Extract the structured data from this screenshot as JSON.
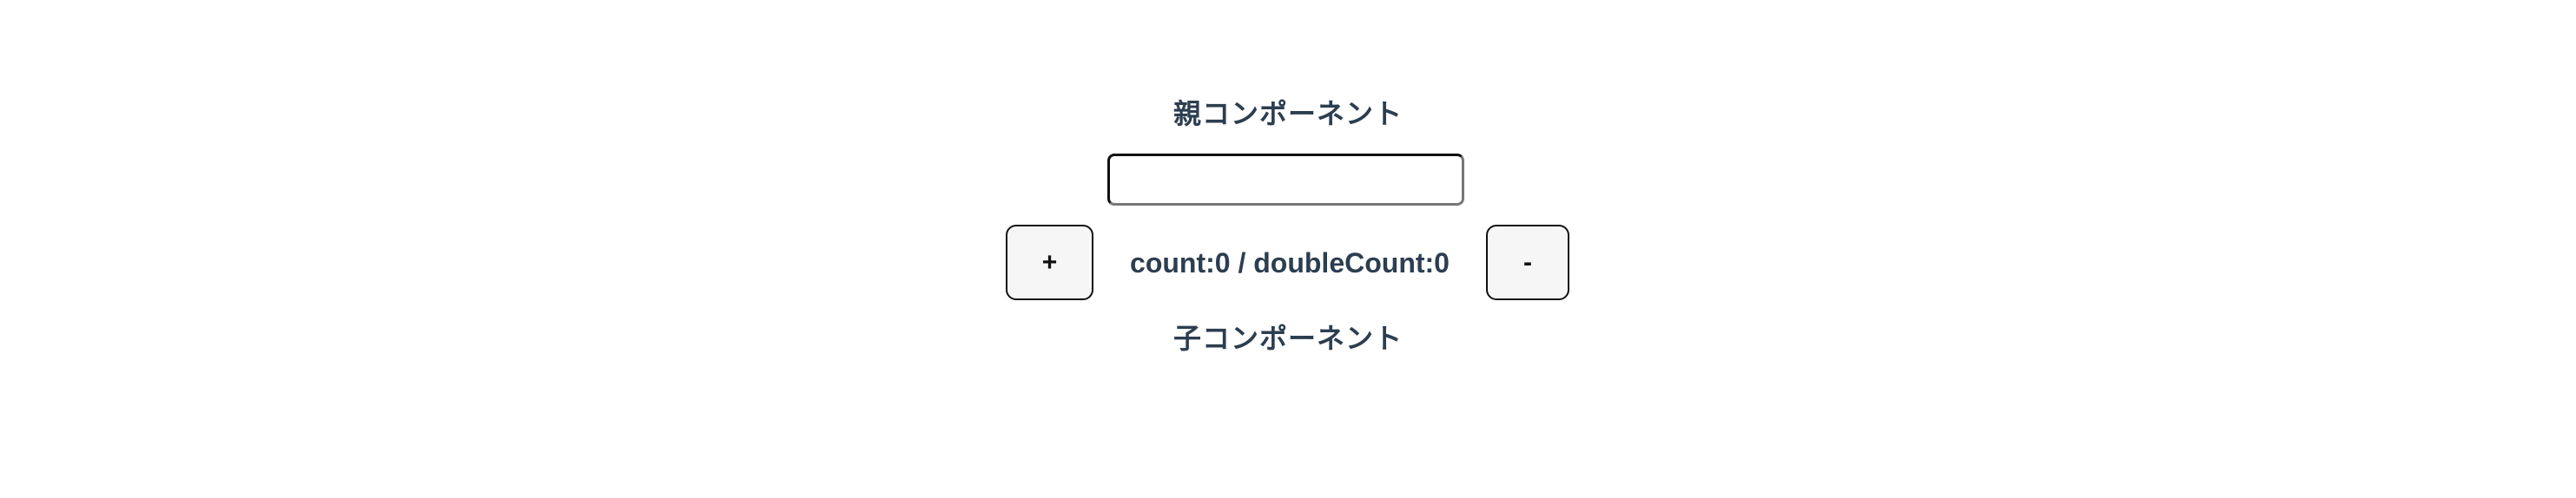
{
  "parent": {
    "title": "親コンポーネント",
    "input_value": ""
  },
  "controls": {
    "plus_label": "+",
    "minus_label": "-",
    "count_text": "count:0 / doubleCount:0"
  },
  "child": {
    "title": "子コンポーネント"
  }
}
